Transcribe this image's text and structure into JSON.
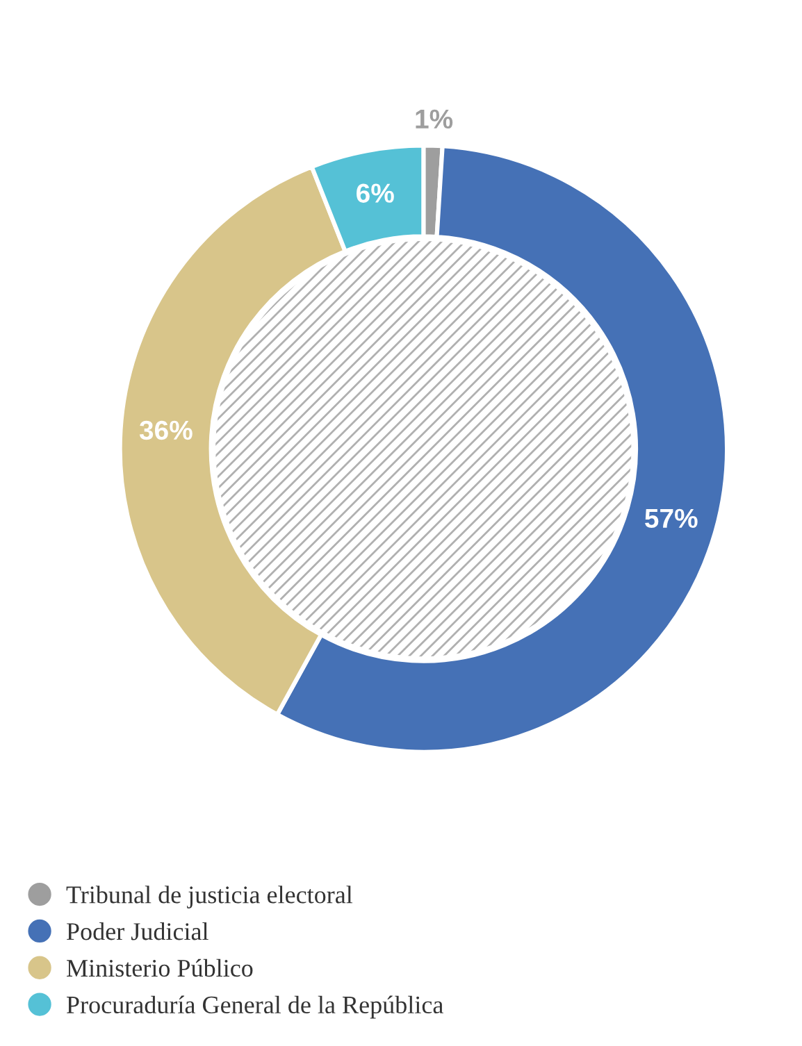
{
  "chart_data": {
    "type": "donut",
    "categories": [
      "Tribunal de justicia electoral",
      "Poder Judicial",
      "Ministerio Público",
      "Procuraduría General de la República"
    ],
    "values": [
      1,
      57,
      36,
      6
    ],
    "colors": [
      "#9e9e9e",
      "#4571b6",
      "#d8c58a",
      "#55c1d6"
    ],
    "value_labels": [
      "1%",
      "57%",
      "36%",
      "6%"
    ],
    "legend": "bottom"
  }
}
